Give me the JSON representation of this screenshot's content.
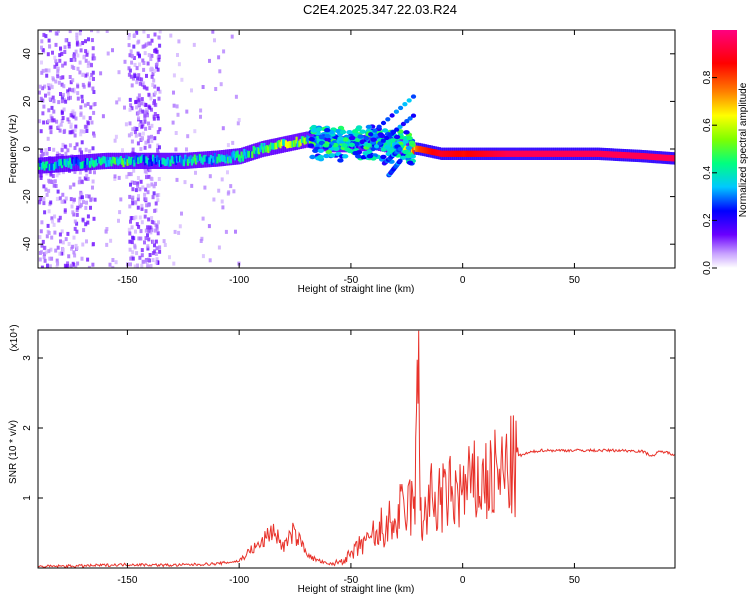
{
  "title": "C2E4.2025.347.22.03.R24",
  "chart_data": [
    {
      "type": "heatmap",
      "xlabel": "Height of straight line (km)",
      "ylabel": "Frequency (Hz)",
      "xlim": [
        -190,
        95
      ],
      "ylim": [
        -50,
        50
      ],
      "xticks": [
        -150,
        -100,
        -50,
        0,
        50
      ],
      "yticks": [
        -40,
        -20,
        0,
        20,
        40
      ],
      "colorbar": {
        "label": "Normalized spectral amplitude",
        "range": [
          0,
          1
        ],
        "ticks": [
          "0.0",
          "0.2",
          "0.4",
          "0.6",
          "0.8"
        ],
        "colors": [
          "#ffffff",
          "#c8a2ff",
          "#6a00ff",
          "#0000ff",
          "#00c8ff",
          "#00ff80",
          "#7fff00",
          "#ffff00",
          "#ff8000",
          "#ff0000",
          "#ff0080"
        ]
      },
      "ridge": [
        {
          "x": -190,
          "y": -7,
          "amp": 0.4
        },
        {
          "x": -175,
          "y": -6,
          "amp": 0.35
        },
        {
          "x": -160,
          "y": -5,
          "amp": 0.45
        },
        {
          "x": -150,
          "y": -5,
          "amp": 0.45
        },
        {
          "x": -140,
          "y": -5,
          "amp": 0.35
        },
        {
          "x": -125,
          "y": -5,
          "amp": 0.4
        },
        {
          "x": -110,
          "y": -4,
          "amp": 0.45
        },
        {
          "x": -100,
          "y": -3,
          "amp": 0.4
        },
        {
          "x": -90,
          "y": 0,
          "amp": 0.45
        },
        {
          "x": -80,
          "y": 2,
          "amp": 0.55
        },
        {
          "x": -70,
          "y": 4,
          "amp": 0.5
        },
        {
          "x": -60,
          "y": 2,
          "amp": 0.35
        },
        {
          "x": -50,
          "y": 2,
          "amp": 0.3
        },
        {
          "x": -40,
          "y": 3,
          "amp": 0.35
        },
        {
          "x": -30,
          "y": 1,
          "amp": 0.4
        },
        {
          "x": -20,
          "y": 0,
          "amp": 0.8
        },
        {
          "x": -10,
          "y": -2,
          "amp": 0.9
        },
        {
          "x": 0,
          "y": -2,
          "amp": 0.85
        },
        {
          "x": 10,
          "y": -2,
          "amp": 0.9
        },
        {
          "x": 20,
          "y": -2,
          "amp": 0.95
        },
        {
          "x": 40,
          "y": -2,
          "amp": 0.95
        },
        {
          "x": 60,
          "y": -2,
          "amp": 0.95
        },
        {
          "x": 80,
          "y": -3,
          "amp": 0.95
        },
        {
          "x": 95,
          "y": -4,
          "amp": 0.95
        }
      ]
    },
    {
      "type": "line",
      "xlabel": "Height of straight line (km)",
      "ylabel": "SNR (10 * v/v)",
      "y_multiplier": "(x10⁴)",
      "xlim": [
        -190,
        95
      ],
      "ylim": [
        0,
        3.4
      ],
      "xticks": [
        -150,
        -100,
        -50,
        0,
        50
      ],
      "yticks": [
        1,
        2,
        3
      ],
      "series": [
        {
          "color": "#e8322a",
          "x": [
            -190,
            -170,
            -150,
            -130,
            -110,
            -100,
            -95,
            -90,
            -85,
            -80,
            -76,
            -72,
            -68,
            -60,
            -55,
            -50,
            -47,
            -44,
            -42,
            -40,
            -38,
            -36,
            -34,
            -32,
            -30,
            -28,
            -26,
            -24,
            -22,
            -21,
            -20,
            -19,
            -18,
            -16,
            -14,
            -12,
            -10,
            -8,
            -6,
            -4,
            -2,
            0,
            2,
            4,
            6,
            8,
            10,
            12,
            14,
            16,
            18,
            20,
            25,
            30,
            35,
            40,
            50,
            60,
            70,
            80,
            85,
            88,
            90,
            95
          ],
          "y": [
            0.02,
            0.03,
            0.05,
            0.04,
            0.06,
            0.1,
            0.25,
            0.35,
            0.55,
            0.3,
            0.5,
            0.35,
            0.15,
            0.05,
            0.1,
            0.2,
            0.3,
            0.45,
            0.35,
            0.55,
            0.4,
            0.7,
            0.55,
            0.8,
            0.6,
            0.95,
            0.75,
            1.05,
            0.9,
            1.4,
            3.4,
            1.2,
            0.7,
            0.9,
            1.1,
            0.95,
            1.15,
            1.05,
            1.2,
            1.1,
            1.25,
            1.15,
            1.3,
            1.25,
            1.35,
            1.3,
            1.4,
            1.35,
            1.45,
            1.4,
            1.5,
            1.55,
            1.6,
            1.65,
            1.68,
            1.68,
            1.68,
            1.68,
            1.68,
            1.67,
            1.6,
            1.66,
            1.66,
            1.62
          ]
        }
      ]
    }
  ]
}
